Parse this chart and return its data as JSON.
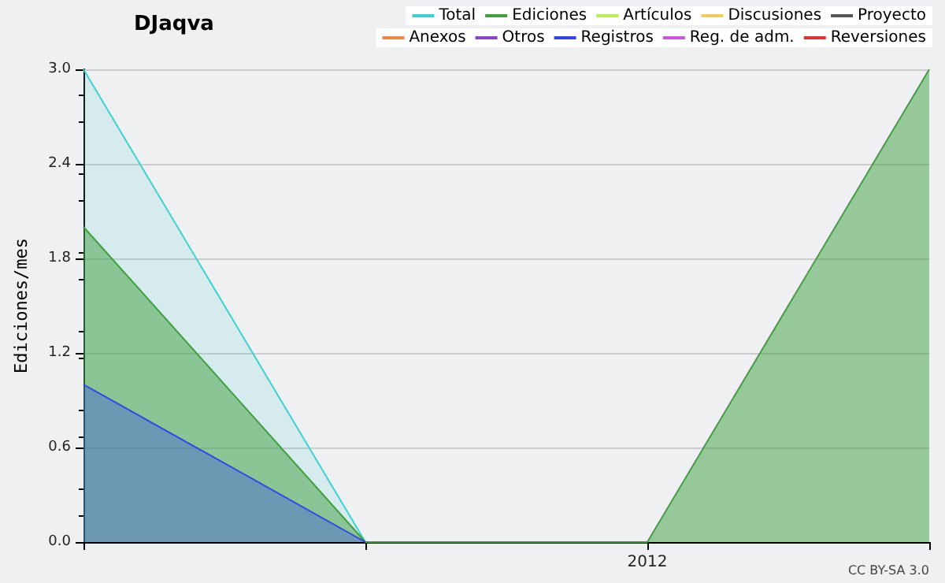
{
  "chart_data": {
    "type": "area",
    "title": "DJaqva",
    "ylabel": "Ediciones/mes",
    "categories": [
      null,
      null,
      "2012",
      null
    ],
    "series": [
      {
        "name": "Total",
        "color": "#40d0d0",
        "values": [
          3,
          0,
          null,
          null
        ]
      },
      {
        "name": "Ediciones",
        "color": "#40a040",
        "values": [
          2,
          0,
          0,
          3
        ]
      },
      {
        "name": "Artículos",
        "color": "#bbee55",
        "values": [
          null,
          null,
          null,
          null
        ]
      },
      {
        "name": "Discusiones",
        "color": "#eecc55",
        "values": [
          null,
          null,
          null,
          null
        ]
      },
      {
        "name": "Proyecto",
        "color": "#555555",
        "values": [
          null,
          null,
          null,
          null
        ]
      },
      {
        "name": "Anexos",
        "color": "#ee8844",
        "values": [
          null,
          null,
          null,
          null
        ]
      },
      {
        "name": "Otros",
        "color": "#8844cc",
        "values": [
          null,
          null,
          null,
          null
        ]
      },
      {
        "name": "Registros",
        "color": "#3344ee",
        "values": [
          1,
          0,
          null,
          null
        ]
      },
      {
        "name": "Reg. de adm.",
        "color": "#cc55dd",
        "values": [
          null,
          null,
          null,
          null
        ]
      },
      {
        "name": "Reversiones",
        "color": "#dd3333",
        "values": [
          null,
          null,
          null,
          null
        ]
      }
    ],
    "ylim": [
      0,
      3
    ],
    "yticks": [
      {
        "value": 0,
        "label": "0.0"
      },
      {
        "value": 0.6,
        "label": "0.6"
      },
      {
        "value": 1.2,
        "label": "1.2"
      },
      {
        "value": 1.8,
        "label": "1.8"
      },
      {
        "value": 2.4,
        "label": "2.4"
      },
      {
        "value": 3,
        "label": "3.0"
      }
    ],
    "grid": "y",
    "legend": "top right",
    "annotations": [
      "CC BY-SA 3.0"
    ]
  }
}
